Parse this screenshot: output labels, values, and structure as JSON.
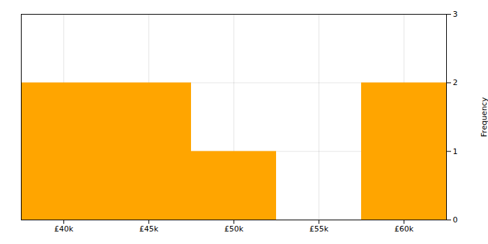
{
  "chart_data": {
    "type": "histogram",
    "bins": [
      37500,
      42500,
      47500,
      52500,
      57500,
      62500
    ],
    "counts": [
      2,
      2,
      1,
      0,
      2
    ],
    "color": "#FFA500",
    "ylabel": "Frequency",
    "xlim": [
      37500,
      62500
    ],
    "xticks": [
      {
        "value": 40000,
        "label": "£40k"
      },
      {
        "value": 45000,
        "label": "£45k"
      },
      {
        "value": 50000,
        "label": "£50k"
      },
      {
        "value": 55000,
        "label": "£55k"
      },
      {
        "value": 60000,
        "label": "£60k"
      }
    ],
    "ylim": [
      0,
      3
    ],
    "yticks": [
      0,
      1,
      2,
      3
    ],
    "grid": true
  }
}
